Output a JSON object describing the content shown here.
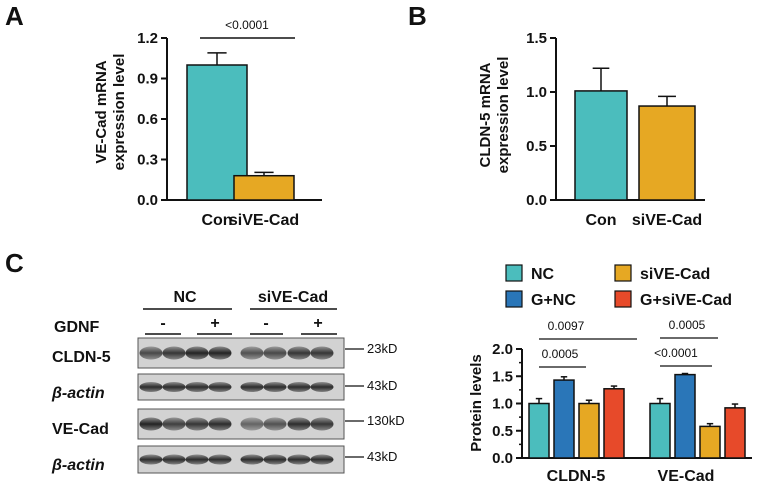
{
  "panels": {
    "A": {
      "letter": "A",
      "ylabel_line1": "VE-Cad mRNA",
      "ylabel_line2": "expression level",
      "pvalue": "<0.0001"
    },
    "B": {
      "letter": "B",
      "ylabel_line1": "CLDN-5 mRNA",
      "ylabel_line2": "expression level"
    },
    "C": {
      "letter": "C",
      "ylabel": "Protein levels",
      "pvalues": [
        "0.0005",
        "0.0097",
        "0.0005",
        "<0.0001"
      ]
    }
  },
  "colors": {
    "NC": "#4bbdbd",
    "siVE-Cad": "#e6a823",
    "G+NC": "#2a76b8",
    "G+siVE-Cad": "#e74a2a"
  },
  "blot": {
    "group_labels": [
      "NC",
      "siVE-Cad"
    ],
    "gdnf_label": "GDNF",
    "gdnf_signs": [
      "-",
      "+",
      "-",
      "+"
    ],
    "rows": [
      {
        "label": "CLDN-5",
        "kd": "23kD"
      },
      {
        "label": "β-actin",
        "kd": "43kD"
      },
      {
        "label": "VE-Cad",
        "kd": "130kD"
      },
      {
        "label": "β-actin",
        "kd": "43kD"
      }
    ]
  },
  "legend": [
    "NC",
    "siVE-Cad",
    "G+NC",
    "G+siVE-Cad"
  ],
  "chart_data": [
    {
      "panel": "A",
      "type": "bar",
      "categories": [
        "Con",
        "siVE-Cad"
      ],
      "values": [
        1.0,
        0.18
      ],
      "errors": [
        0.09,
        0.025
      ],
      "ylabel": "VE-Cad mRNA expression level",
      "ylim": [
        0,
        1.2
      ],
      "yticks": [
        "0.0",
        "0.3",
        "0.6",
        "0.9",
        "1.2"
      ],
      "annotations": [
        "<0.0001"
      ]
    },
    {
      "panel": "B",
      "type": "bar",
      "categories": [
        "Con",
        "siVE-Cad"
      ],
      "values": [
        1.01,
        0.87
      ],
      "errors": [
        0.21,
        0.09
      ],
      "ylabel": "CLDN-5 mRNA expression level",
      "ylim": [
        0,
        1.5
      ],
      "yticks": [
        "0.0",
        "0.5",
        "1.0",
        "1.5"
      ]
    },
    {
      "panel": "C",
      "type": "bar",
      "categories": [
        "CLDN-5",
        "VE-Cad"
      ],
      "series": [
        {
          "name": "NC",
          "values": [
            1.0,
            1.0
          ],
          "errors": [
            0.09,
            0.09
          ]
        },
        {
          "name": "G+NC",
          "values": [
            1.43,
            1.53
          ],
          "errors": [
            0.06,
            0.02
          ]
        },
        {
          "name": "siVE-Cad",
          "values": [
            1.0,
            0.58
          ],
          "errors": [
            0.06,
            0.05
          ]
        },
        {
          "name": "G+siVE-Cad",
          "values": [
            1.27,
            0.92
          ],
          "errors": [
            0.05,
            0.07
          ]
        }
      ],
      "ylabel": "Protein levels",
      "ylim": [
        0,
        2.0
      ],
      "yticks": [
        "0.0",
        "0.5",
        "1.0",
        "1.5",
        "2.0"
      ],
      "annotations": [
        "0.0005",
        "0.0097",
        "0.0005",
        "<0.0001"
      ]
    }
  ]
}
